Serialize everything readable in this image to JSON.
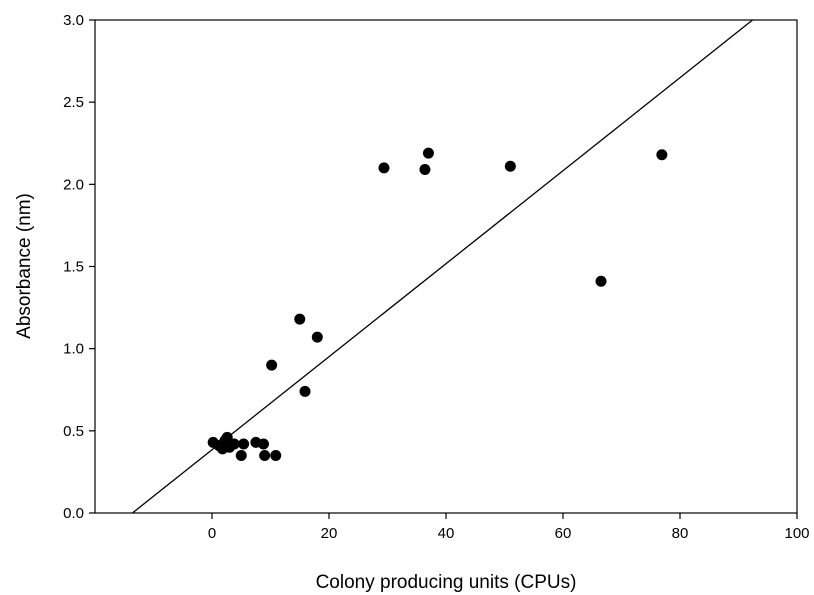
{
  "chart_data": {
    "type": "scatter",
    "xlabel": "Colony producing units (CPUs)",
    "ylabel": "Absorbance (nm)",
    "xlim": [
      -20,
      100
    ],
    "ylim": [
      0,
      3.0
    ],
    "x_ticks": [
      0,
      20,
      40,
      60,
      80,
      100
    ],
    "x_tick_labels": [
      "0",
      "20",
      "40",
      "60",
      "80",
      "100"
    ],
    "y_ticks": [
      0,
      0.5,
      1.0,
      1.5,
      2.0,
      2.5,
      3.0
    ],
    "y_tick_labels": [
      "0.0",
      "0.5",
      "1.0",
      "1.5",
      "2.0",
      "2.5",
      "3.0"
    ],
    "grid": false,
    "legend": "none",
    "marker_color": "#000000",
    "series": [
      {
        "points": [
          {
            "x": 0.2,
            "y": 0.43
          },
          {
            "x": 1.2,
            "y": 0.41
          },
          {
            "x": 1.8,
            "y": 0.39
          },
          {
            "x": 2.2,
            "y": 0.44
          },
          {
            "x": 2.6,
            "y": 0.46
          },
          {
            "x": 3.0,
            "y": 0.4
          },
          {
            "x": 3.8,
            "y": 0.42
          },
          {
            "x": 5.0,
            "y": 0.35
          },
          {
            "x": 5.4,
            "y": 0.42
          },
          {
            "x": 7.5,
            "y": 0.43
          },
          {
            "x": 8.8,
            "y": 0.42
          },
          {
            "x": 9.0,
            "y": 0.35
          },
          {
            "x": 10.2,
            "y": 0.9
          },
          {
            "x": 10.9,
            "y": 0.35
          },
          {
            "x": 15.0,
            "y": 1.18
          },
          {
            "x": 15.9,
            "y": 0.74
          },
          {
            "x": 18.0,
            "y": 1.07
          },
          {
            "x": 29.4,
            "y": 2.1
          },
          {
            "x": 36.4,
            "y": 2.09
          },
          {
            "x": 37.0,
            "y": 2.19
          },
          {
            "x": 51.0,
            "y": 2.11
          },
          {
            "x": 66.5,
            "y": 1.41
          },
          {
            "x": 76.9,
            "y": 2.18
          }
        ]
      }
    ],
    "regression_line": {
      "x": [
        -13.6,
        92.4
      ],
      "y": [
        0,
        3.0
      ]
    }
  }
}
